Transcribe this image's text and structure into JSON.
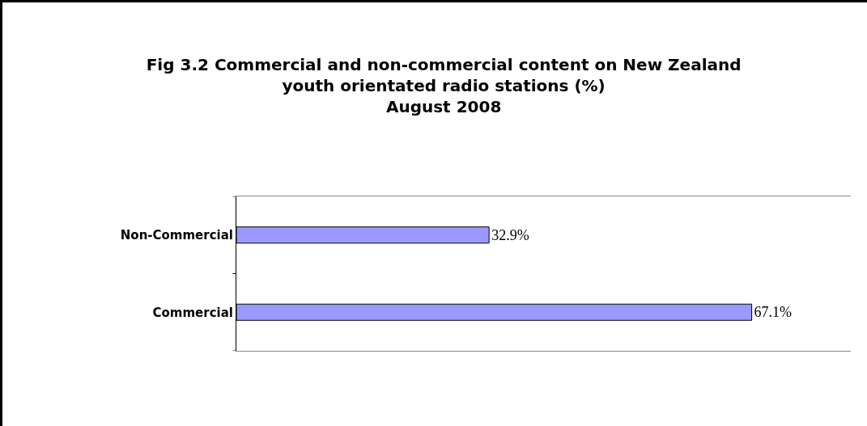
{
  "chart_data": {
    "type": "bar",
    "orientation": "horizontal",
    "title": "Fig 3.2 Commercial and non-commercial content on New Zealand\nyouth orientated radio stations (%)\nAugust 2008",
    "categories": [
      "Non-Commercial",
      "Commercial"
    ],
    "values": [
      32.9,
      67.1
    ],
    "value_labels": [
      "32.9%",
      "67.1%"
    ],
    "color": "#9999ff",
    "xlim": [
      0,
      80
    ],
    "tick_labels": "y",
    "grid": false,
    "legend": false
  }
}
